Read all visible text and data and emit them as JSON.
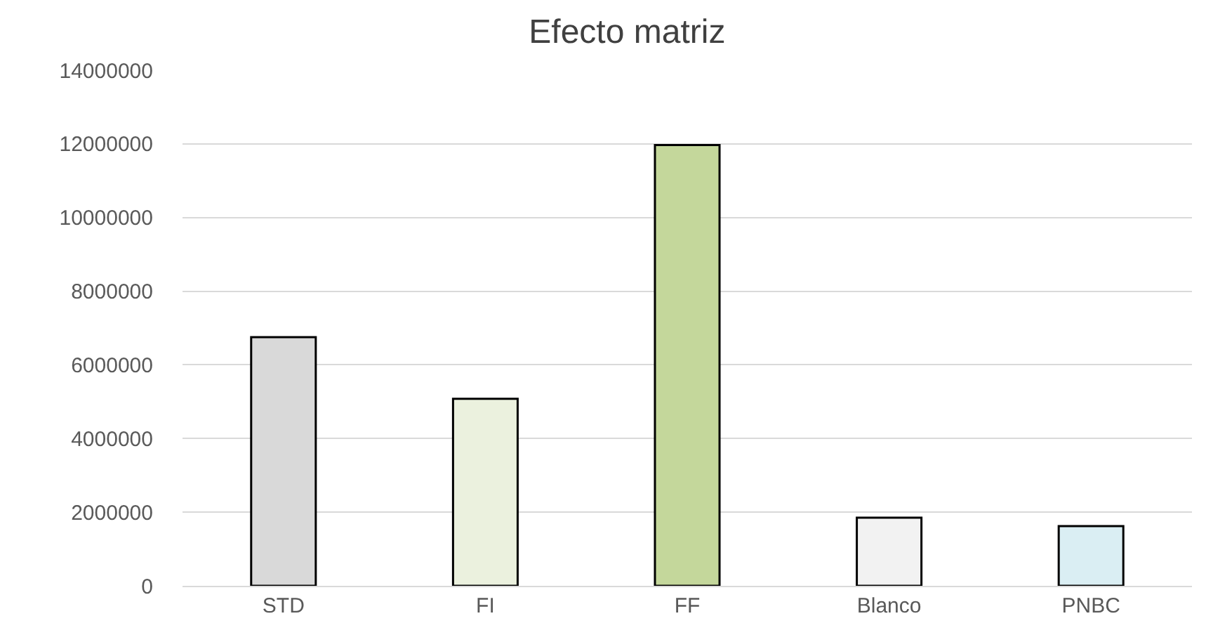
{
  "chart_data": {
    "type": "bar",
    "title": "Efecto matriz",
    "categories": [
      "STD",
      "FI",
      "FF",
      "Blanco",
      "PNBC"
    ],
    "values": [
      6750000,
      5080000,
      11970000,
      1850000,
      1620000
    ],
    "colors": [
      "#d9d9d9",
      "#ebf1de",
      "#c4d79b",
      "#f2f2f2",
      "#daeef3"
    ],
    "ylim": [
      0,
      14000000
    ],
    "yticks": [
      0,
      2000000,
      4000000,
      6000000,
      8000000,
      10000000,
      12000000,
      14000000
    ],
    "grid": "y",
    "legend": false
  }
}
